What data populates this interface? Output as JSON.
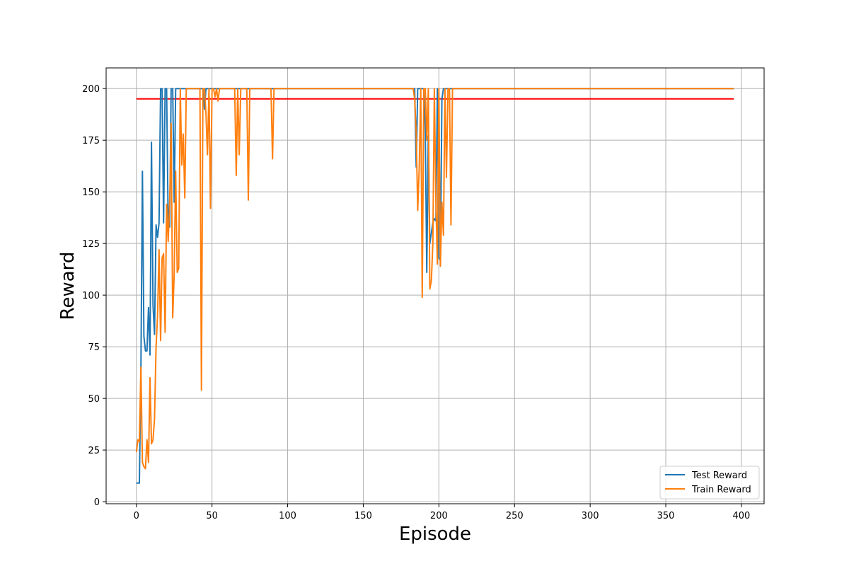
{
  "chart_data": {
    "type": "line",
    "title": "",
    "xlabel": "Episode",
    "ylabel": "Reward",
    "xlim": [
      -20,
      415
    ],
    "ylim": [
      -1,
      210
    ],
    "xticks": [
      0,
      50,
      100,
      150,
      200,
      250,
      300,
      350,
      400
    ],
    "yticks": [
      0,
      25,
      50,
      75,
      100,
      125,
      150,
      175,
      200
    ],
    "grid": true,
    "legend_position": "lower right",
    "series": [
      {
        "name": "Test Reward",
        "color": "#1f77b4",
        "points": [
          [
            0,
            9
          ],
          [
            1,
            9
          ],
          [
            2,
            9
          ],
          [
            3,
            65
          ],
          [
            4,
            160
          ],
          [
            5,
            80
          ],
          [
            6,
            73
          ],
          [
            7,
            73
          ],
          [
            8,
            94
          ],
          [
            9,
            71
          ],
          [
            10,
            174
          ],
          [
            11,
            95
          ],
          [
            12,
            81
          ],
          [
            13,
            134
          ],
          [
            14,
            128
          ],
          [
            15,
            135
          ],
          [
            16,
            200
          ],
          [
            17,
            200
          ],
          [
            18,
            135
          ],
          [
            19,
            200
          ],
          [
            20,
            200
          ],
          [
            21,
            135
          ],
          [
            22,
            133
          ],
          [
            23,
            200
          ],
          [
            24,
            200
          ],
          [
            25,
            145
          ],
          [
            26,
            200
          ],
          [
            27,
            200
          ],
          [
            28,
            200
          ],
          [
            29,
            200
          ],
          [
            30,
            200
          ],
          [
            31,
            200
          ],
          [
            32,
            200
          ],
          [
            33,
            200
          ],
          [
            44,
            200
          ],
          [
            45,
            190
          ],
          [
            46,
            200
          ],
          [
            47,
            200
          ],
          [
            48,
            200
          ],
          [
            184,
            200
          ],
          [
            185,
            162
          ],
          [
            186,
            200
          ],
          [
            187,
            200
          ],
          [
            188,
            200
          ],
          [
            189,
            200
          ],
          [
            190,
            200
          ],
          [
            191,
            180
          ],
          [
            192,
            111
          ],
          [
            193,
            177
          ],
          [
            194,
            125
          ],
          [
            196,
            135
          ],
          [
            197,
            137
          ],
          [
            198,
            136
          ],
          [
            199,
            200
          ],
          [
            200,
            118
          ],
          [
            201,
            117
          ],
          [
            202,
            195
          ],
          [
            203,
            200
          ],
          [
            204,
            200
          ],
          [
            205,
            200
          ],
          [
            206,
            200
          ],
          [
            207,
            200
          ],
          [
            208,
            200
          ],
          [
            209,
            200
          ],
          [
            210,
            200
          ],
          [
            211,
            200
          ],
          [
            395,
            200
          ]
        ]
      },
      {
        "name": "Train Reward",
        "color": "#ff7f0e",
        "points": [
          [
            0,
            24
          ],
          [
            1,
            30
          ],
          [
            2,
            29
          ],
          [
            3,
            65
          ],
          [
            4,
            19
          ],
          [
            5,
            17
          ],
          [
            6,
            16
          ],
          [
            7,
            30
          ],
          [
            8,
            19
          ],
          [
            9,
            60
          ],
          [
            10,
            28
          ],
          [
            11,
            30
          ],
          [
            12,
            40
          ],
          [
            13,
            75
          ],
          [
            14,
            90
          ],
          [
            15,
            122
          ],
          [
            16,
            78
          ],
          [
            17,
            118
          ],
          [
            18,
            120
          ],
          [
            19,
            82
          ],
          [
            20,
            144
          ],
          [
            21,
            126
          ],
          [
            22,
            144
          ],
          [
            23,
            183
          ],
          [
            24,
            89
          ],
          [
            25,
            110
          ],
          [
            26,
            160
          ],
          [
            27,
            111
          ],
          [
            28,
            113
          ],
          [
            29,
            200
          ],
          [
            30,
            163
          ],
          [
            31,
            178
          ],
          [
            32,
            147
          ],
          [
            33,
            200
          ],
          [
            42,
            200
          ],
          [
            43,
            54
          ],
          [
            44,
            200
          ],
          [
            45,
            200
          ],
          [
            46,
            188
          ],
          [
            47,
            168
          ],
          [
            48,
            200
          ],
          [
            49,
            142
          ],
          [
            50,
            200
          ],
          [
            51,
            200
          ],
          [
            52,
            196
          ],
          [
            53,
            200
          ],
          [
            54,
            194
          ],
          [
            55,
            200
          ],
          [
            65,
            200
          ],
          [
            66,
            158
          ],
          [
            67,
            200
          ],
          [
            68,
            168
          ],
          [
            69,
            200
          ],
          [
            70,
            200
          ],
          [
            73,
            200
          ],
          [
            74,
            146
          ],
          [
            75,
            200
          ],
          [
            89,
            200
          ],
          [
            90,
            166
          ],
          [
            91,
            200
          ],
          [
            183,
            200
          ],
          [
            184,
            195
          ],
          [
            185,
            178
          ],
          [
            186,
            141
          ],
          [
            187,
            162
          ],
          [
            188,
            200
          ],
          [
            189,
            99
          ],
          [
            190,
            200
          ],
          [
            191,
            200
          ],
          [
            192,
            175
          ],
          [
            193,
            200
          ],
          [
            194,
            103
          ],
          [
            195,
            107
          ],
          [
            196,
            125
          ],
          [
            197,
            200
          ],
          [
            198,
            145
          ],
          [
            199,
            115
          ],
          [
            200,
            200
          ],
          [
            201,
            114
          ],
          [
            202,
            145
          ],
          [
            203,
            129
          ],
          [
            204,
            200
          ],
          [
            205,
            157
          ],
          [
            206,
            200
          ],
          [
            207,
            200
          ],
          [
            208,
            134
          ],
          [
            209,
            200
          ],
          [
            210,
            200
          ],
          [
            211,
            200
          ],
          [
            395,
            200
          ]
        ]
      }
    ],
    "hlines": [
      {
        "y": 195,
        "x_from": 0,
        "x_to": 395,
        "color": "#ff0000"
      }
    ]
  }
}
